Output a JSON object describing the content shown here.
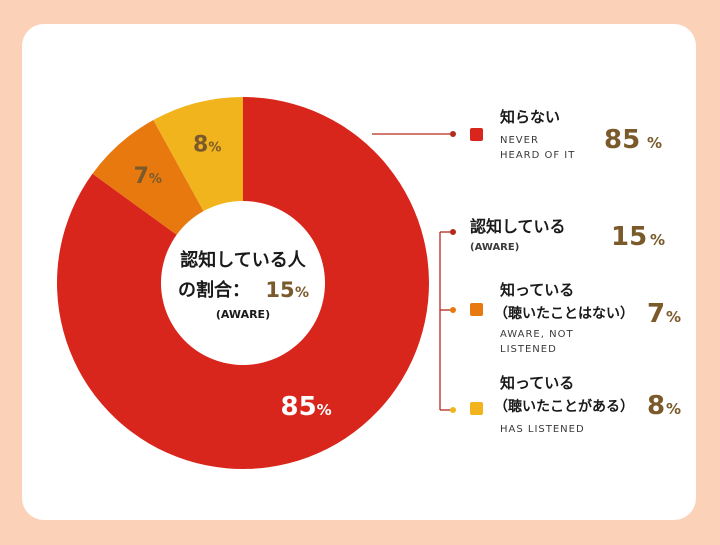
{
  "chart_data": {
    "type": "pie",
    "style": "donut",
    "slices": [
      {
        "label": "NEVER HEARD OF IT",
        "value": 85,
        "display": "85",
        "color": "#d9261c"
      },
      {
        "label": "AWARE, NOT LISTENED",
        "value": 7,
        "display": "7",
        "color": "#e8790e"
      },
      {
        "label": "HAS LISTENED",
        "value": 8,
        "display": "8",
        "color": "#f2b41c"
      }
    ],
    "unit": "%",
    "center": {
      "line1": "認知している人",
      "line2": "の割合：",
      "value": "15",
      "unit": "%",
      "sub": "(AWARE)"
    },
    "legend": {
      "never": {
        "jp": "知らない",
        "en1": "NEVER",
        "en2": "HEARD OF IT",
        "value": "85",
        "unit": "%"
      },
      "aware": {
        "jp": "認知している",
        "en": "(AWARE)",
        "value": "15",
        "unit": "%"
      },
      "not_listened": {
        "jp1": "知っている",
        "jp2": "（聴いたことはない）",
        "en1": "AWARE, NOT",
        "en2": "LISTENED",
        "value": "7",
        "unit": "%"
      },
      "listened": {
        "jp1": "知っている",
        "jp2": "（聴いたことがある）",
        "en": "HAS LISTENED",
        "value": "8",
        "unit": "%"
      }
    }
  },
  "colors": {
    "background": "#fbd2b8",
    "card": "#ffffff",
    "value_text": "#7a5a2a",
    "dark_text": "#1a1a1a",
    "connector": "#b52a1e"
  }
}
